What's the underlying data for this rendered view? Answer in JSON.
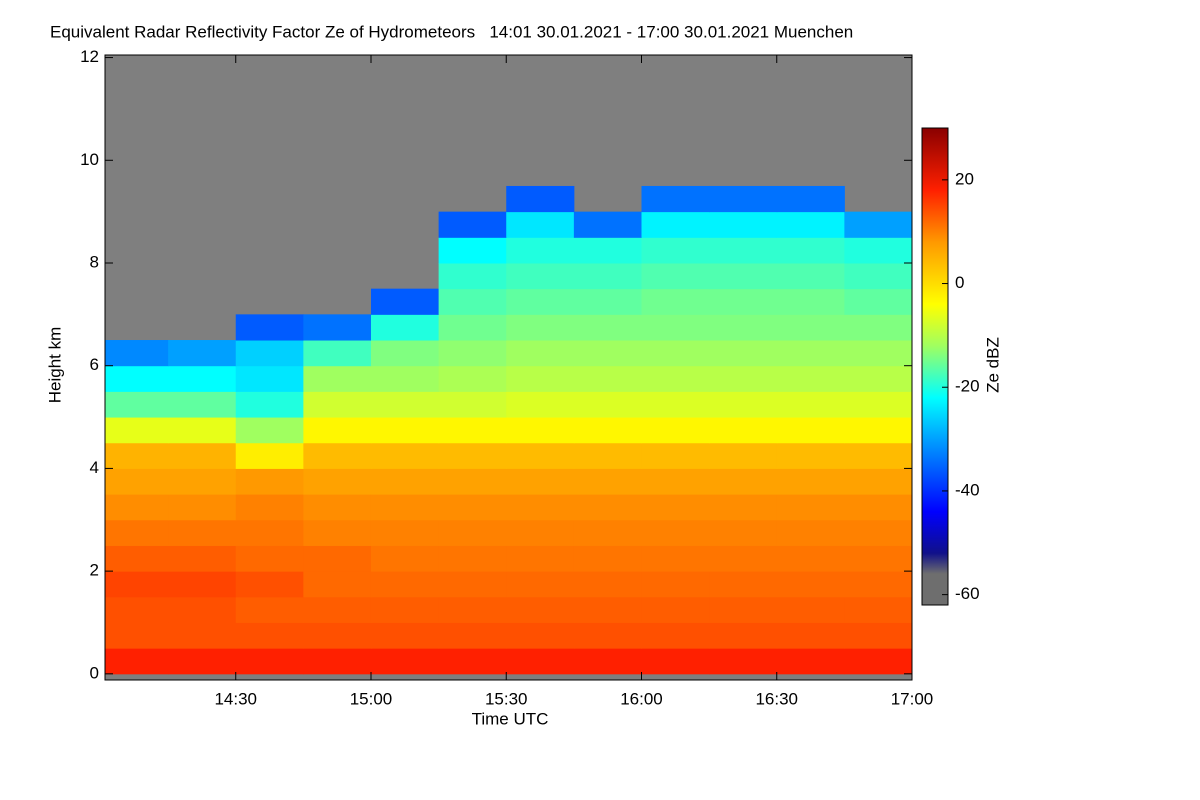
{
  "chart_data": {
    "type": "heatmap",
    "title": "Equivalent Radar Reflectivity Factor Ze of Hydrometeors   14:01 30.01.2021 - 17:00 30.01.2021 Muenchen",
    "x_label": "Time UTC",
    "y_label": "Height km",
    "colorbar_label": "Ze dBZ",
    "xlim": [
      14.0167,
      17.0
    ],
    "xticks": [
      {
        "value": 14.5,
        "label": "14:30"
      },
      {
        "value": 15.0,
        "label": "15:00"
      },
      {
        "value": 15.5,
        "label": "15:30"
      },
      {
        "value": 16.0,
        "label": "16:00"
      },
      {
        "value": 16.5,
        "label": "16:30"
      },
      {
        "value": 17.0,
        "label": "17:00"
      }
    ],
    "ylim": [
      -0.12,
      12.05
    ],
    "yticks": [
      0,
      2,
      4,
      6,
      8,
      10,
      12
    ],
    "clim": [
      -62,
      30
    ],
    "cticks": [
      -60,
      -40,
      -20,
      0,
      20
    ],
    "colormap": [
      {
        "value": -62,
        "color": "#6e6e6e"
      },
      {
        "value": -56,
        "color": "#6e6e6e"
      },
      {
        "value": -52,
        "color": "#10108a"
      },
      {
        "value": -44,
        "color": "#0000ff"
      },
      {
        "value": -30,
        "color": "#00a0ff"
      },
      {
        "value": -22,
        "color": "#00ffff"
      },
      {
        "value": -12,
        "color": "#a0ff60"
      },
      {
        "value": -4,
        "color": "#ffff00"
      },
      {
        "value": 8,
        "color": "#ff9900"
      },
      {
        "value": 18,
        "color": "#ff2000"
      },
      {
        "value": 30,
        "color": "#8a0000"
      }
    ],
    "x_edges": [
      14.0167,
      14.25,
      14.5,
      14.75,
      15.0,
      15.25,
      15.5,
      15.75,
      16.0,
      16.25,
      16.5,
      16.75,
      17.0
    ],
    "y_edges": [
      0,
      0.5,
      1,
      1.5,
      2,
      2.5,
      3,
      3.5,
      4,
      4.5,
      5,
      5.5,
      6,
      6.5,
      7,
      7.5,
      8,
      8.5,
      9,
      9.5,
      10,
      10.5,
      11,
      11.5,
      12
    ],
    "z": [
      [
        18,
        18,
        18,
        18,
        18,
        18,
        18,
        18,
        18,
        18,
        18,
        18
      ],
      [
        14,
        14,
        14,
        14,
        14,
        14,
        14,
        14,
        14,
        14,
        14,
        14
      ],
      [
        14,
        14,
        13,
        13,
        13,
        13,
        13,
        13,
        13,
        13,
        13,
        13
      ],
      [
        15,
        15,
        14,
        12,
        12,
        12,
        12,
        12,
        12,
        12,
        12,
        12
      ],
      [
        13,
        13,
        12,
        12,
        11,
        11,
        11,
        11,
        11,
        11,
        11,
        11
      ],
      [
        11,
        11,
        11,
        10,
        10,
        10,
        10,
        10,
        10,
        10,
        10,
        10
      ],
      [
        9,
        9,
        10,
        9,
        9,
        9,
        9,
        9,
        9,
        9,
        9,
        9
      ],
      [
        7,
        7,
        8,
        7,
        7,
        7,
        7,
        7,
        7,
        7,
        7,
        7
      ],
      [
        5,
        5,
        -2,
        4,
        4,
        4,
        4,
        4,
        4,
        4,
        4,
        4
      ],
      [
        -6,
        -6,
        -12,
        -3,
        -3,
        -3,
        -3,
        -3,
        -3,
        -3,
        -3,
        -3
      ],
      [
        -16,
        -16,
        -20,
        -8,
        -8,
        -8,
        -7,
        -7,
        -7,
        -7,
        -7,
        -7
      ],
      [
        -22,
        -22,
        -24,
        -12,
        -12,
        -11,
        -10,
        -10,
        -10,
        -10,
        -10,
        -10
      ],
      [
        -32,
        -30,
        -26,
        -18,
        -14,
        -13,
        -12,
        -12,
        -12,
        -12,
        -12,
        -12
      ],
      [
        null,
        null,
        -36,
        -34,
        -20,
        -15,
        -14,
        -14,
        -14,
        -14,
        -14,
        -14
      ],
      [
        null,
        null,
        null,
        null,
        -36,
        -17,
        -16,
        -16,
        -15,
        -15,
        -15,
        -16
      ],
      [
        null,
        null,
        null,
        null,
        null,
        -19,
        -18,
        -18,
        -17,
        -17,
        -17,
        -18
      ],
      [
        null,
        null,
        null,
        null,
        null,
        -22,
        -20,
        -20,
        -19,
        -19,
        -19,
        -20
      ],
      [
        null,
        null,
        null,
        null,
        null,
        -36,
        -24,
        -34,
        -23,
        -23,
        -23,
        -30
      ],
      [
        null,
        null,
        null,
        null,
        null,
        null,
        -36,
        null,
        -34,
        -34,
        -34,
        null
      ],
      [
        null,
        null,
        null,
        null,
        null,
        null,
        null,
        null,
        null,
        null,
        null,
        null
      ],
      [
        null,
        null,
        null,
        null,
        null,
        null,
        null,
        null,
        null,
        null,
        null,
        null
      ],
      [
        null,
        null,
        null,
        null,
        null,
        null,
        null,
        null,
        null,
        null,
        null,
        null
      ],
      [
        null,
        null,
        null,
        null,
        null,
        null,
        null,
        null,
        null,
        null,
        null,
        null
      ],
      [
        null,
        null,
        null,
        null,
        null,
        null,
        null,
        null,
        null,
        null,
        null,
        null
      ]
    ]
  }
}
